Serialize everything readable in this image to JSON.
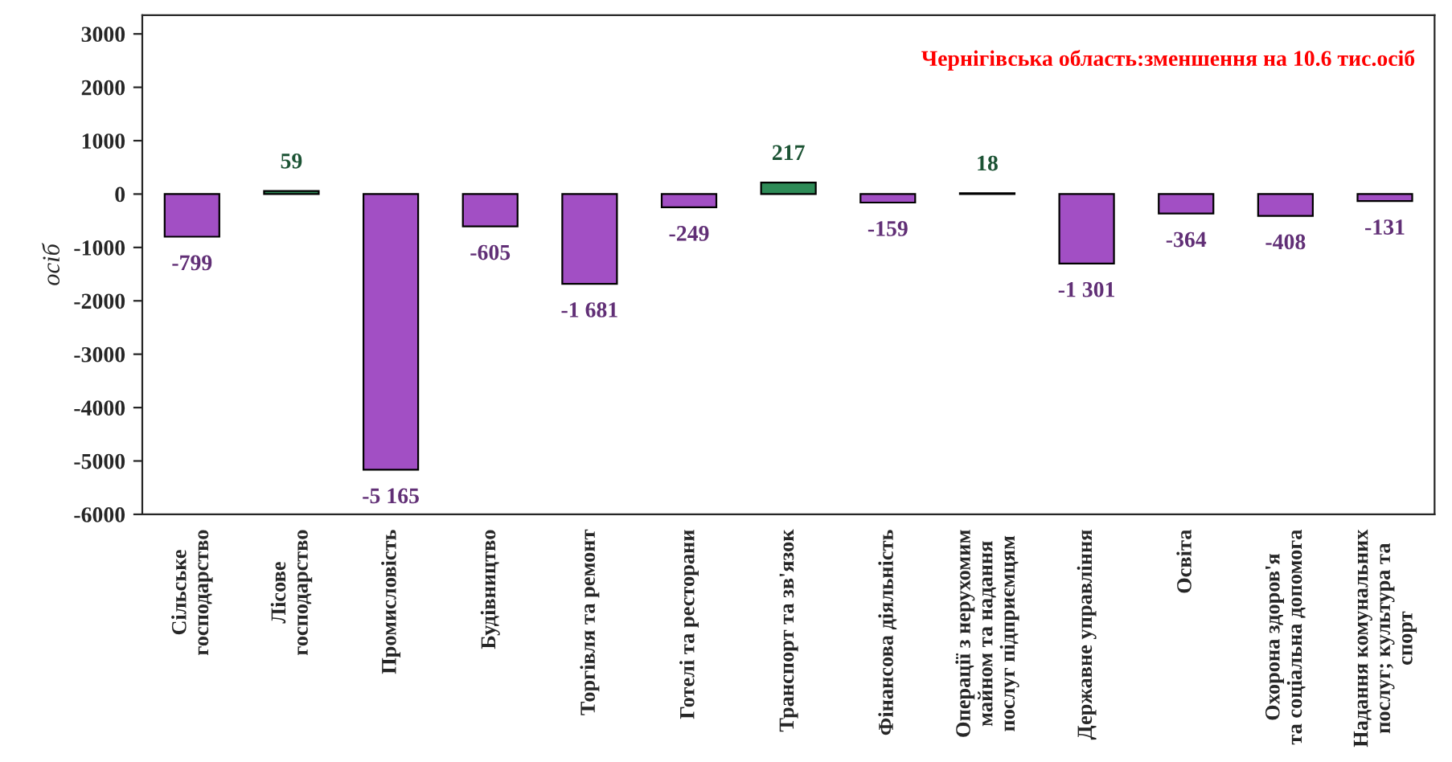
{
  "chart_data": {
    "type": "bar",
    "title": "Чернігівська область:зменшення на 10.6 тис.осіб",
    "ylabel": "осіб",
    "categories": [
      "Сільське\nгосподарство",
      "Лісове\nгосподарство",
      "Промисловість",
      "Будівництво",
      "Торгівля та ремонт",
      "Готелі та ресторани",
      "Транспорт та зв'язок",
      "Фінансова діяльність",
      "Операції з нерухомим\nмайном та надання\nпослуг підприємцям",
      "Державне управління",
      "Освіта",
      "Охорона здоров'я\nта соціальна допомога",
      "Надання комунальних\nпослуг; культура та\nспорт"
    ],
    "values": [
      -799,
      59,
      -5165,
      -605,
      -1681,
      -249,
      217,
      -159,
      18,
      -1301,
      -364,
      -408,
      -131
    ],
    "value_labels": [
      "-799",
      "59",
      "-5 165",
      "-605",
      "-1 681",
      "-249",
      "217",
      "-159",
      "18",
      "-1 301",
      "-364",
      "-408",
      "-131"
    ],
    "colors": [
      "#a24fc4",
      "#2e8b57",
      "#a24fc4",
      "#a24fc4",
      "#a24fc4",
      "#a24fc4",
      "#2e8b57",
      "#a24fc4",
      "#2e8b57",
      "#a24fc4",
      "#a24fc4",
      "#a24fc4",
      "#a24fc4"
    ],
    "ylim": [
      -6000,
      3350
    ],
    "yticks": [
      -6000,
      -5000,
      -4000,
      -3000,
      -2000,
      -1000,
      0,
      1000,
      2000,
      3000
    ],
    "grid": false,
    "legend": false
  }
}
